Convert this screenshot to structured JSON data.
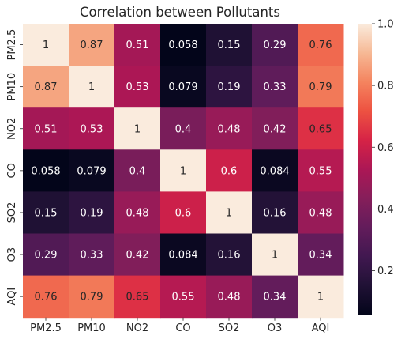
{
  "chart_data": {
    "type": "heatmap",
    "title": "Correlation between Pollutants",
    "x_labels": [
      "PM2.5",
      "PM10",
      "NO2",
      "CO",
      "SO2",
      "O3",
      "AQI"
    ],
    "y_labels": [
      "PM2.5",
      "PM10",
      "NO2",
      "CO",
      "SO2",
      "O3",
      "AQI"
    ],
    "values": [
      [
        1,
        0.87,
        0.51,
        0.058,
        0.15,
        0.29,
        0.76
      ],
      [
        0.87,
        1,
        0.53,
        0.079,
        0.19,
        0.33,
        0.79
      ],
      [
        0.51,
        0.53,
        1,
        0.4,
        0.48,
        0.42,
        0.65
      ],
      [
        0.058,
        0.079,
        0.4,
        1,
        0.6,
        0.084,
        0.55
      ],
      [
        0.15,
        0.19,
        0.48,
        0.6,
        1,
        0.16,
        0.48
      ],
      [
        0.29,
        0.33,
        0.42,
        0.084,
        0.16,
        1,
        0.34
      ],
      [
        0.76,
        0.79,
        0.65,
        0.55,
        0.48,
        0.34,
        1
      ]
    ],
    "annotations": [
      [
        "1",
        "0.87",
        "0.51",
        "0.058",
        "0.15",
        "0.29",
        "0.76"
      ],
      [
        "0.87",
        "1",
        "0.53",
        "0.079",
        "0.19",
        "0.33",
        "0.79"
      ],
      [
        "0.51",
        "0.53",
        "1",
        "0.4",
        "0.48",
        "0.42",
        "0.65"
      ],
      [
        "0.058",
        "0.079",
        "0.4",
        "1",
        "0.6",
        "0.084",
        "0.55"
      ],
      [
        "0.15",
        "0.19",
        "0.48",
        "0.6",
        "1",
        "0.16",
        "0.48"
      ],
      [
        "0.29",
        "0.33",
        "0.42",
        "0.084",
        "0.16",
        "1",
        "0.34"
      ],
      [
        "0.76",
        "0.79",
        "0.65",
        "0.55",
        "0.48",
        "0.34",
        "1"
      ]
    ],
    "colorbar": {
      "ticks": [
        "0.2",
        "0.4",
        "0.6",
        "0.8",
        "1.0"
      ],
      "tick_values": [
        0.2,
        0.4,
        0.6,
        0.8,
        1.0
      ],
      "range": [
        0.058,
        1.0
      ],
      "colormap": "rocket"
    },
    "annotation_text_colors": {
      "light_cells": "#262626",
      "dark_cells": "#ffffff"
    }
  }
}
